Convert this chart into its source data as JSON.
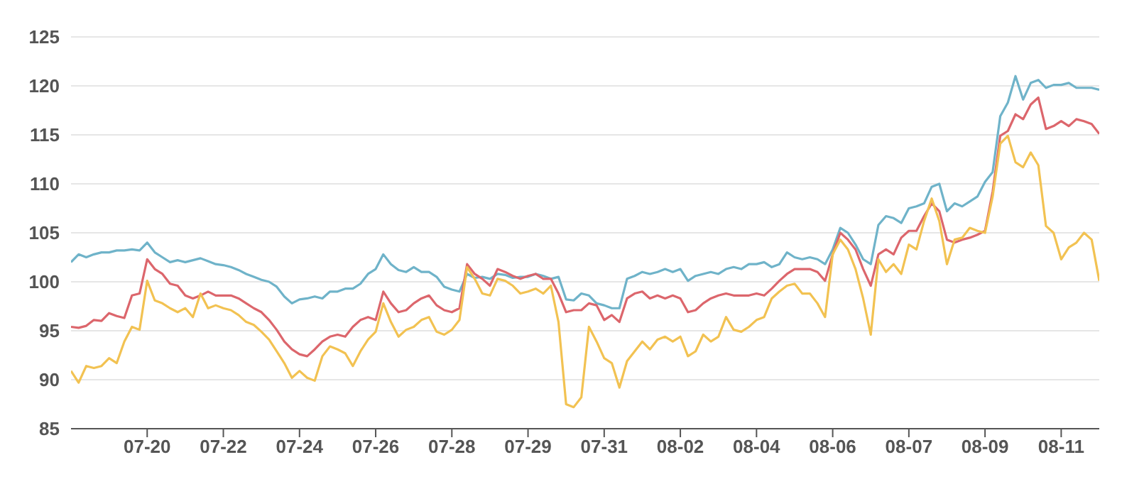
{
  "chart_data": {
    "type": "line",
    "categories": [
      null,
      null,
      null,
      null,
      null,
      null,
      null,
      null,
      null,
      null,
      "07-20",
      null,
      null,
      null,
      null,
      null,
      null,
      null,
      null,
      null,
      "07-22",
      null,
      null,
      null,
      null,
      null,
      null,
      null,
      null,
      null,
      "07-24",
      null,
      null,
      null,
      null,
      null,
      null,
      null,
      null,
      null,
      "07-26",
      null,
      null,
      null,
      null,
      null,
      null,
      null,
      null,
      null,
      "07-28",
      null,
      null,
      null,
      null,
      null,
      null,
      null,
      null,
      null,
      "07-29",
      null,
      null,
      null,
      null,
      null,
      null,
      null,
      null,
      null,
      "07-31",
      null,
      null,
      null,
      null,
      null,
      null,
      null,
      null,
      null,
      "08-02",
      null,
      null,
      null,
      null,
      null,
      null,
      null,
      null,
      null,
      "08-04",
      null,
      null,
      null,
      null,
      null,
      null,
      null,
      null,
      null,
      "08-06",
      null,
      null,
      null,
      null,
      null,
      null,
      null,
      null,
      null,
      "08-07",
      null,
      null,
      null,
      null,
      null,
      null,
      null,
      null,
      null,
      "08-09",
      null,
      null,
      null,
      null,
      null,
      null,
      null,
      null,
      null,
      "08-11",
      null,
      null,
      null,
      null,
      null
    ],
    "series": [
      {
        "color": "#6fb3c9",
        "values": [
          102,
          102.8,
          102.5,
          102.8,
          103,
          103,
          103.2,
          103.2,
          103.3,
          103.2,
          104,
          103,
          102.5,
          102,
          102.2,
          102,
          102.2,
          102.4,
          102.1,
          101.8,
          101.7,
          101.5,
          101.2,
          100.8,
          100.5,
          100.2,
          100,
          99.5,
          98.5,
          97.8,
          98.2,
          98.3,
          98.5,
          98.3,
          99,
          99,
          99.3,
          99.3,
          99.8,
          100.8,
          101.3,
          102.8,
          101.8,
          101.2,
          101,
          101.5,
          101,
          101,
          100.5,
          99.5,
          99.2,
          99,
          100.8,
          100.4,
          100.5,
          100.3,
          100.8,
          100.7,
          100.4,
          100.5,
          100.5,
          100.8,
          100.6,
          100.3,
          100.5,
          98.2,
          98.1,
          98.8,
          98.6,
          97.8,
          97.6,
          97.3,
          97.3,
          100.3,
          100.6,
          101,
          100.8,
          101,
          101.3,
          101,
          101.3,
          100.1,
          100.6,
          100.8,
          101,
          100.8,
          101.3,
          101.5,
          101.3,
          101.8,
          101.8,
          102,
          101.5,
          101.8,
          103,
          102.5,
          102.3,
          102.5,
          102.3,
          101.8,
          103.3,
          105.5,
          105,
          103.8,
          102.3,
          101.8,
          105.8,
          106.7,
          106.5,
          106,
          107.5,
          107.7,
          108,
          109.7,
          110,
          107.2,
          108,
          107.7,
          108.2,
          108.7,
          110.2,
          111.2,
          116.9,
          118.3,
          121,
          118.6,
          120.3,
          120.6,
          119.8,
          120.1,
          120.1,
          120.3,
          119.8,
          119.8,
          119.8,
          119.6
        ]
      },
      {
        "color": "#dc666c",
        "values": [
          95.4,
          95.3,
          95.5,
          96.1,
          96,
          96.8,
          96.5,
          96.3,
          98.6,
          98.8,
          102.3,
          101.3,
          100.8,
          99.8,
          99.6,
          98.6,
          98.3,
          98.6,
          99,
          98.6,
          98.6,
          98.6,
          98.3,
          97.8,
          97.3,
          96.9,
          96.1,
          95.1,
          93.9,
          93.1,
          92.6,
          92.4,
          93.1,
          93.9,
          94.4,
          94.6,
          94.4,
          95.4,
          96.1,
          96.4,
          96.1,
          99,
          97.8,
          96.9,
          97.1,
          97.8,
          98.3,
          98.6,
          97.6,
          97.1,
          96.9,
          97.3,
          101.8,
          100.8,
          100.3,
          99.6,
          101.3,
          101,
          100.6,
          100.3,
          100.6,
          100.8,
          100.3,
          100.3,
          98.8,
          96.9,
          97.1,
          97.1,
          97.8,
          97.6,
          96.1,
          96.6,
          95.9,
          98.3,
          98.8,
          99,
          98.3,
          98.6,
          98.3,
          98.6,
          98.3,
          96.9,
          97.1,
          97.8,
          98.3,
          98.6,
          98.8,
          98.6,
          98.6,
          98.6,
          98.8,
          98.6,
          99.3,
          100.1,
          100.8,
          101.3,
          101.3,
          101.3,
          101,
          100.1,
          102.8,
          105,
          104.3,
          103.3,
          101.3,
          99.6,
          102.8,
          103.3,
          102.8,
          104.5,
          105.2,
          105.2,
          106.7,
          108,
          107.2,
          104.3,
          104,
          104.3,
          104.5,
          104.8,
          105.2,
          109.2,
          114.9,
          115.4,
          117.1,
          116.6,
          118.1,
          118.8,
          115.6,
          115.9,
          116.4,
          115.9,
          116.6,
          116.4,
          116.1,
          115.1
        ]
      },
      {
        "color": "#f2c252",
        "values": [
          90.9,
          89.7,
          91.4,
          91.2,
          91.4,
          92.2,
          91.7,
          93.9,
          95.4,
          95.1,
          100.1,
          98.1,
          97.8,
          97.3,
          96.9,
          97.3,
          96.4,
          98.8,
          97.3,
          97.6,
          97.3,
          97.1,
          96.6,
          95.9,
          95.6,
          94.9,
          94.1,
          92.9,
          91.7,
          90.2,
          90.9,
          90.2,
          89.9,
          92.4,
          93.4,
          93.1,
          92.7,
          91.4,
          92.9,
          94.1,
          94.9,
          97.8,
          95.9,
          94.4,
          95.1,
          95.4,
          96.1,
          96.4,
          94.9,
          94.6,
          95.1,
          96.1,
          101.5,
          100.3,
          98.8,
          98.6,
          100.3,
          100.1,
          99.6,
          98.8,
          99,
          99.3,
          98.8,
          99.6,
          95.9,
          87.5,
          87.2,
          88.2,
          95.4,
          93.9,
          92.2,
          91.7,
          89.2,
          91.9,
          92.9,
          93.9,
          93.1,
          94.1,
          94.4,
          93.9,
          94.4,
          92.4,
          92.9,
          94.6,
          93.9,
          94.4,
          96.4,
          95.1,
          94.9,
          95.4,
          96.1,
          96.4,
          98.3,
          99,
          99.6,
          99.8,
          98.8,
          98.8,
          97.8,
          96.4,
          102.8,
          104.3,
          103.3,
          101.3,
          98.3,
          94.6,
          102.3,
          101,
          101.8,
          100.8,
          103.8,
          103.3,
          106.2,
          108.5,
          106.2,
          101.8,
          104.3,
          104.5,
          105.5,
          105.2,
          105,
          108.7,
          114.1,
          114.9,
          112.2,
          111.7,
          113.2,
          111.9,
          105.7,
          105,
          102.3,
          103.5,
          104,
          105,
          104.3,
          100.1
        ]
      }
    ],
    "ylim": [
      85,
      125
    ],
    "yticks": [
      85,
      90,
      95,
      100,
      105,
      110,
      115,
      120,
      125
    ],
    "grid": "y",
    "marker": "none",
    "line_style": "solid"
  }
}
